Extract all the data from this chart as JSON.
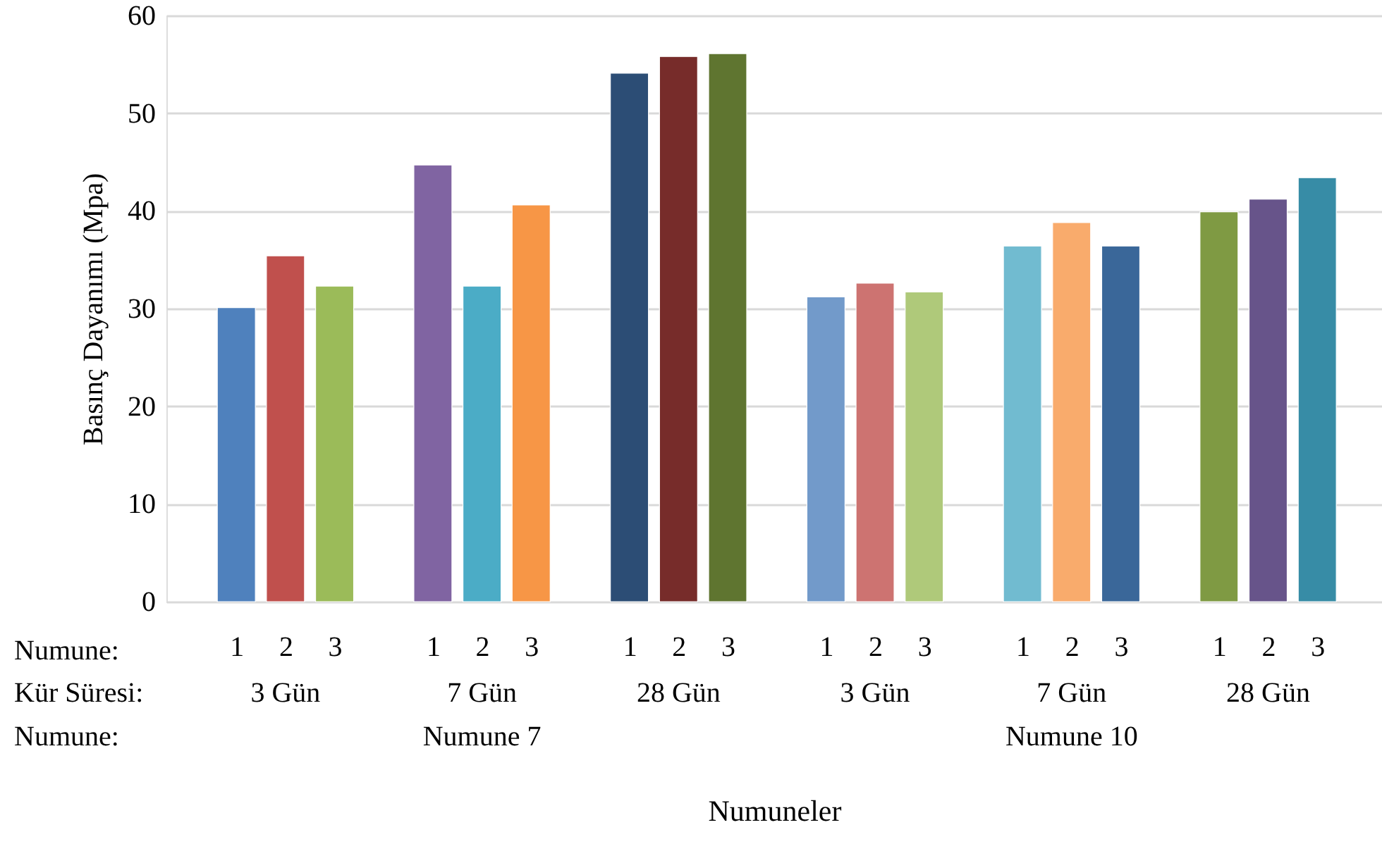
{
  "chart_data": {
    "type": "bar",
    "ylabel": "Basınç Dayanımı (Mpa)",
    "xlabel": "Numuneler",
    "categories": [
      "1",
      "2",
      "3",
      "1",
      "2",
      "3",
      "1",
      "2",
      "3",
      "1",
      "2",
      "3",
      "1",
      "2",
      "3",
      "1",
      "2",
      "3"
    ],
    "values": [
      30.1,
      35.4,
      32.3,
      44.7,
      32.3,
      40.6,
      54.1,
      55.8,
      56.1,
      31.2,
      32.6,
      31.7,
      36.4,
      38.8,
      36.4,
      39.9,
      41.2,
      43.4
    ],
    "colors": [
      "#4f81bd",
      "#c0504d",
      "#9bbb59",
      "#8064a2",
      "#4bacc6",
      "#f79646",
      "#2c4d75",
      "#772c2a",
      "#5f7530",
      "#729aca",
      "#cd7371",
      "#afc97a",
      "#71bbd0",
      "#f9ab6c",
      "#3a6799",
      "#7f9a43",
      "#67548a",
      "#378ca6"
    ],
    "ylim": [
      0,
      60
    ],
    "yticks": [
      0,
      10,
      20,
      30,
      40,
      50,
      60
    ],
    "grid": "y",
    "annotations": [
      "Numune:",
      "Kür Süresi:",
      "Numune:",
      "3 Gün",
      "7 Gün",
      "28 Gün",
      "3 Gün",
      "7 Gün",
      "28 Gün",
      "Numune 7",
      "Numune 10"
    ]
  }
}
